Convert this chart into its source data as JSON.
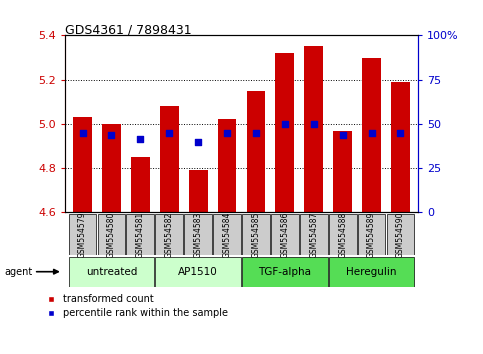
{
  "title": "GDS4361 / 7898431",
  "samples": [
    "GSM554579",
    "GSM554580",
    "GSM554581",
    "GSM554582",
    "GSM554583",
    "GSM554584",
    "GSM554585",
    "GSM554586",
    "GSM554587",
    "GSM554588",
    "GSM554589",
    "GSM554590"
  ],
  "red_values": [
    5.03,
    5.0,
    4.85,
    5.08,
    4.79,
    5.02,
    5.15,
    5.32,
    5.35,
    4.97,
    5.3,
    5.19
  ],
  "blue_values": [
    4.96,
    4.95,
    4.93,
    4.96,
    4.92,
    4.96,
    4.96,
    5.0,
    5.0,
    4.95,
    4.96,
    4.96
  ],
  "ymin": 4.6,
  "ymax": 5.4,
  "yticks_left": [
    4.6,
    4.8,
    5.0,
    5.2,
    5.4
  ],
  "yticks_right": [
    0,
    25,
    50,
    75,
    100
  ],
  "yticks_right_labels": [
    "0",
    "25",
    "50",
    "75",
    "100%"
  ],
  "groups": [
    {
      "label": "untreated",
      "indices": [
        0,
        1,
        2
      ],
      "color": "#CCFFCC"
    },
    {
      "label": "AP1510",
      "indices": [
        3,
        4,
        5
      ],
      "color": "#CCFFCC"
    },
    {
      "label": "TGF-alpha",
      "indices": [
        6,
        7,
        8
      ],
      "color": "#55DD55"
    },
    {
      "label": "Heregulin",
      "indices": [
        9,
        10,
        11
      ],
      "color": "#55DD55"
    }
  ],
  "bar_color": "#CC0000",
  "dot_color": "#0000CC",
  "bar_bottom": 4.6,
  "bar_width": 0.65,
  "dot_size": 18,
  "left_axis_color": "#CC0000",
  "right_axis_color": "#0000CC",
  "legend_red": "transformed count",
  "legend_blue": "percentile rank within the sample",
  "grid_yticks": [
    4.8,
    5.0,
    5.2
  ]
}
